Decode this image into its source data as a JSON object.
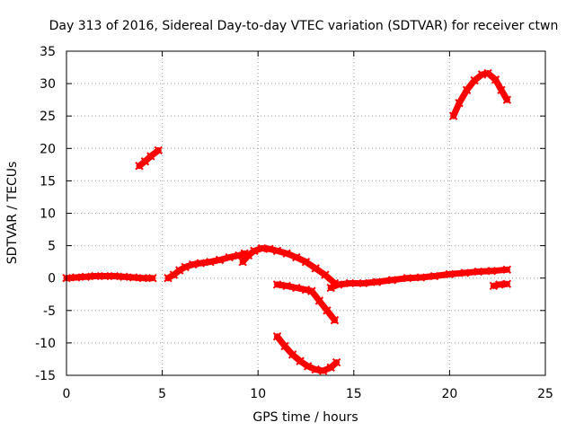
{
  "chart_data": {
    "type": "scatter",
    "title": "Day 313 of 2016, Sidereal Day-to-day VTEC variation (SDTVAR) for receiver ctwn",
    "xlabel": "GPS time / hours",
    "ylabel": "SDTVAR / TECUs",
    "xlim": [
      0,
      25
    ],
    "ylim": [
      -15,
      35
    ],
    "xticks": [
      "0",
      "5",
      "10",
      "15",
      "20",
      "25"
    ],
    "yticks": [
      "-15",
      "-10",
      "-5",
      "0",
      "5",
      "10",
      "15",
      "20",
      "25",
      "30",
      "35"
    ],
    "xtick_values": [
      0,
      5,
      10,
      15,
      20,
      25
    ],
    "ytick_values": [
      -15,
      -10,
      -5,
      0,
      5,
      10,
      15,
      20,
      25,
      30,
      35
    ],
    "grid": true,
    "color": "#ff0000",
    "series": [
      {
        "name": "segment-1",
        "points": [
          [
            0,
            0
          ],
          [
            0.5,
            0.1
          ],
          [
            1,
            0.2
          ],
          [
            1.5,
            0.3
          ],
          [
            2,
            0.3
          ],
          [
            2.5,
            0.3
          ],
          [
            3,
            0.2
          ],
          [
            3.5,
            0.1
          ],
          [
            4,
            0
          ],
          [
            4.5,
            0
          ]
        ]
      },
      {
        "name": "segment-2",
        "points": [
          [
            3.8,
            17.3
          ],
          [
            4.1,
            18
          ],
          [
            4.4,
            18.8
          ],
          [
            4.8,
            19.7
          ]
        ]
      },
      {
        "name": "segment-3",
        "points": [
          [
            5.3,
            0
          ],
          [
            5.6,
            0.5
          ],
          [
            5.9,
            1.2
          ],
          [
            6.2,
            1.7
          ],
          [
            6.6,
            2.1
          ],
          [
            7,
            2.3
          ],
          [
            7.5,
            2.5
          ],
          [
            8,
            2.8
          ],
          [
            8.5,
            3.2
          ],
          [
            9,
            3.5
          ],
          [
            9.3,
            3.8
          ]
        ]
      },
      {
        "name": "segment-4",
        "points": [
          [
            9.2,
            2.5
          ],
          [
            9.5,
            3.5
          ],
          [
            9.8,
            4.2
          ],
          [
            10.2,
            4.6
          ],
          [
            10.6,
            4.5
          ],
          [
            11,
            4.2
          ],
          [
            11.5,
            3.8
          ],
          [
            12,
            3.2
          ],
          [
            12.5,
            2.5
          ],
          [
            13,
            1.5
          ],
          [
            13.5,
            0.5
          ],
          [
            14,
            -0.8
          ]
        ]
      },
      {
        "name": "segment-5",
        "points": [
          [
            11,
            -1
          ],
          [
            11.5,
            -1.2
          ],
          [
            12,
            -1.5
          ],
          [
            12.5,
            -1.8
          ],
          [
            12.8,
            -2
          ],
          [
            13.2,
            -3.5
          ],
          [
            13.6,
            -5
          ],
          [
            14,
            -6.5
          ]
        ]
      },
      {
        "name": "segment-6",
        "points": [
          [
            11,
            -9
          ],
          [
            11.4,
            -10.5
          ],
          [
            11.8,
            -11.8
          ],
          [
            12.2,
            -12.8
          ],
          [
            12.6,
            -13.6
          ],
          [
            13,
            -14.1
          ],
          [
            13.4,
            -14.3
          ],
          [
            13.8,
            -13.8
          ],
          [
            14.1,
            -13
          ]
        ]
      },
      {
        "name": "segment-7",
        "points": [
          [
            13.8,
            -1.5
          ],
          [
            14.2,
            -1
          ],
          [
            14.8,
            -0.8
          ],
          [
            15.5,
            -0.8
          ],
          [
            16.2,
            -0.6
          ],
          [
            17,
            -0.3
          ],
          [
            17.8,
            0
          ],
          [
            18.5,
            0.1
          ],
          [
            19.2,
            0.3
          ],
          [
            20,
            0.6
          ],
          [
            20.8,
            0.8
          ],
          [
            21.5,
            1
          ],
          [
            22.2,
            1.1
          ],
          [
            23,
            1.3
          ]
        ]
      },
      {
        "name": "segment-8",
        "points": [
          [
            20.2,
            25
          ],
          [
            20.5,
            27
          ],
          [
            20.9,
            29
          ],
          [
            21.3,
            30.5
          ],
          [
            21.7,
            31.4
          ],
          [
            22,
            31.6
          ],
          [
            22.4,
            30.6
          ],
          [
            22.7,
            29
          ],
          [
            23,
            27.5
          ]
        ]
      },
      {
        "name": "segment-9",
        "points": [
          [
            22.3,
            -1.2
          ],
          [
            22.6,
            -1
          ],
          [
            23,
            -0.9
          ]
        ]
      }
    ]
  }
}
